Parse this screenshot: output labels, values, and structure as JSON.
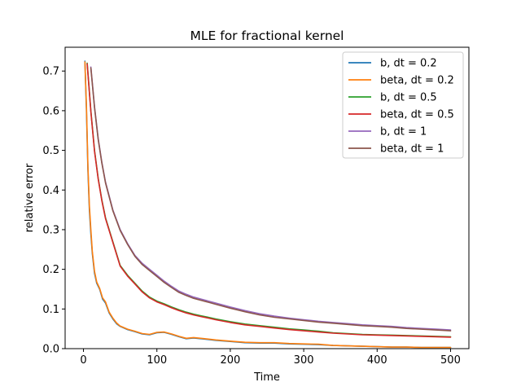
{
  "chart_data": {
    "type": "line",
    "title": "MLE for fractional kernel",
    "xlabel": "Time",
    "ylabel": "relative error",
    "xlim": [
      -25,
      525
    ],
    "ylim": [
      0,
      0.76
    ],
    "xticks": [
      0,
      100,
      200,
      300,
      400,
      500
    ],
    "xtick_labels": [
      "0",
      "100",
      "200",
      "300",
      "400",
      "500"
    ],
    "yticks": [
      0,
      0.1,
      0.2,
      0.3,
      0.4,
      0.5,
      0.6,
      0.7
    ],
    "ytick_labels": [
      "0.0",
      "0.1",
      "0.2",
      "0.3",
      "0.4",
      "0.5",
      "0.6",
      "0.7"
    ],
    "grid": false,
    "legend_position": "top-right",
    "series": [
      {
        "name": "b, dt = 0.2",
        "color": "#1f77b4",
        "x": [
          2,
          4,
          6,
          8,
          10,
          12,
          15,
          18,
          22,
          26,
          30,
          35,
          40,
          45,
          50,
          60,
          70,
          80,
          90,
          100,
          110,
          120,
          130,
          140,
          150,
          160,
          180,
          200,
          220,
          240,
          260,
          280,
          300,
          320,
          340,
          360,
          380,
          400,
          420,
          440,
          460,
          480,
          500
        ],
        "y": [
          0.725,
          0.6,
          0.45,
          0.35,
          0.29,
          0.24,
          0.19,
          0.165,
          0.15,
          0.125,
          0.115,
          0.09,
          0.075,
          0.063,
          0.056,
          0.048,
          0.043,
          0.037,
          0.035,
          0.04,
          0.041,
          0.036,
          0.03,
          0.025,
          0.027,
          0.025,
          0.021,
          0.018,
          0.015,
          0.014,
          0.014,
          0.012,
          0.011,
          0.01,
          0.008,
          0.007,
          0.006,
          0.005,
          0.004,
          0.004,
          0.003,
          0.003,
          0.003
        ]
      },
      {
        "name": "beta, dt = 0.2",
        "color": "#ff7f0e",
        "x": [
          2,
          4,
          6,
          8,
          10,
          12,
          15,
          18,
          22,
          26,
          30,
          35,
          40,
          45,
          50,
          60,
          70,
          80,
          90,
          100,
          110,
          120,
          130,
          140,
          150,
          160,
          180,
          200,
          220,
          240,
          260,
          280,
          300,
          320,
          340,
          360,
          380,
          400,
          420,
          440,
          460,
          480,
          500
        ],
        "y": [
          0.723,
          0.61,
          0.46,
          0.36,
          0.3,
          0.245,
          0.195,
          0.168,
          0.152,
          0.128,
          0.118,
          0.092,
          0.077,
          0.065,
          0.057,
          0.049,
          0.044,
          0.038,
          0.036,
          0.041,
          0.042,
          0.037,
          0.031,
          0.026,
          0.028,
          0.026,
          0.022,
          0.019,
          0.016,
          0.015,
          0.015,
          0.013,
          0.012,
          0.011,
          0.008,
          0.007,
          0.006,
          0.005,
          0.004,
          0.004,
          0.003,
          0.003,
          0.003
        ]
      },
      {
        "name": "b, dt = 0.5",
        "color": "#2ca02c",
        "x": [
          5,
          10,
          15,
          20,
          25,
          30,
          40,
          50,
          60,
          70,
          80,
          90,
          100,
          110,
          120,
          130,
          140,
          150,
          160,
          170,
          180,
          200,
          220,
          240,
          260,
          280,
          300,
          320,
          340,
          360,
          380,
          400,
          420,
          440,
          460,
          480,
          500
        ],
        "y": [
          0.72,
          0.6,
          0.5,
          0.43,
          0.375,
          0.33,
          0.27,
          0.21,
          0.185,
          0.165,
          0.145,
          0.13,
          0.12,
          0.113,
          0.105,
          0.098,
          0.092,
          0.087,
          0.083,
          0.079,
          0.075,
          0.068,
          0.062,
          0.058,
          0.054,
          0.05,
          0.047,
          0.044,
          0.04,
          0.038,
          0.036,
          0.035,
          0.034,
          0.033,
          0.032,
          0.031,
          0.03
        ]
      },
      {
        "name": "beta, dt = 0.5",
        "color": "#d62728",
        "x": [
          5,
          10,
          15,
          20,
          25,
          30,
          40,
          50,
          60,
          70,
          80,
          90,
          100,
          110,
          120,
          130,
          140,
          150,
          160,
          170,
          180,
          200,
          220,
          240,
          260,
          280,
          300,
          320,
          340,
          360,
          380,
          400,
          420,
          440,
          460,
          480,
          500
        ],
        "y": [
          0.718,
          0.598,
          0.498,
          0.428,
          0.373,
          0.328,
          0.268,
          0.208,
          0.183,
          0.163,
          0.143,
          0.128,
          0.118,
          0.111,
          0.103,
          0.096,
          0.09,
          0.085,
          0.081,
          0.077,
          0.073,
          0.066,
          0.06,
          0.056,
          0.052,
          0.048,
          0.045,
          0.042,
          0.039,
          0.037,
          0.035,
          0.034,
          0.033,
          0.032,
          0.031,
          0.03,
          0.029
        ]
      },
      {
        "name": "b, dt = 1",
        "color": "#9467bd",
        "x": [
          10,
          15,
          20,
          25,
          30,
          40,
          50,
          60,
          70,
          80,
          90,
          100,
          110,
          120,
          130,
          140,
          150,
          160,
          170,
          180,
          200,
          220,
          240,
          260,
          280,
          300,
          320,
          340,
          360,
          380,
          400,
          420,
          440,
          460,
          480,
          500
        ],
        "y": [
          0.71,
          0.61,
          0.53,
          0.47,
          0.42,
          0.35,
          0.3,
          0.265,
          0.235,
          0.215,
          0.2,
          0.185,
          0.17,
          0.157,
          0.145,
          0.137,
          0.13,
          0.125,
          0.12,
          0.115,
          0.105,
          0.096,
          0.088,
          0.082,
          0.077,
          0.073,
          0.069,
          0.066,
          0.063,
          0.06,
          0.058,
          0.056,
          0.053,
          0.051,
          0.049,
          0.047
        ]
      },
      {
        "name": "beta, dt = 1",
        "color": "#8c564b",
        "x": [
          10,
          15,
          20,
          25,
          30,
          40,
          50,
          60,
          70,
          80,
          90,
          100,
          110,
          120,
          130,
          140,
          150,
          160,
          170,
          180,
          200,
          220,
          240,
          260,
          280,
          300,
          320,
          340,
          360,
          380,
          400,
          420,
          440,
          460,
          480,
          500
        ],
        "y": [
          0.708,
          0.608,
          0.528,
          0.468,
          0.418,
          0.348,
          0.298,
          0.263,
          0.233,
          0.212,
          0.197,
          0.182,
          0.167,
          0.154,
          0.142,
          0.134,
          0.127,
          0.122,
          0.117,
          0.112,
          0.102,
          0.093,
          0.085,
          0.079,
          0.075,
          0.071,
          0.067,
          0.064,
          0.061,
          0.058,
          0.056,
          0.054,
          0.051,
          0.049,
          0.047,
          0.045
        ]
      }
    ]
  }
}
